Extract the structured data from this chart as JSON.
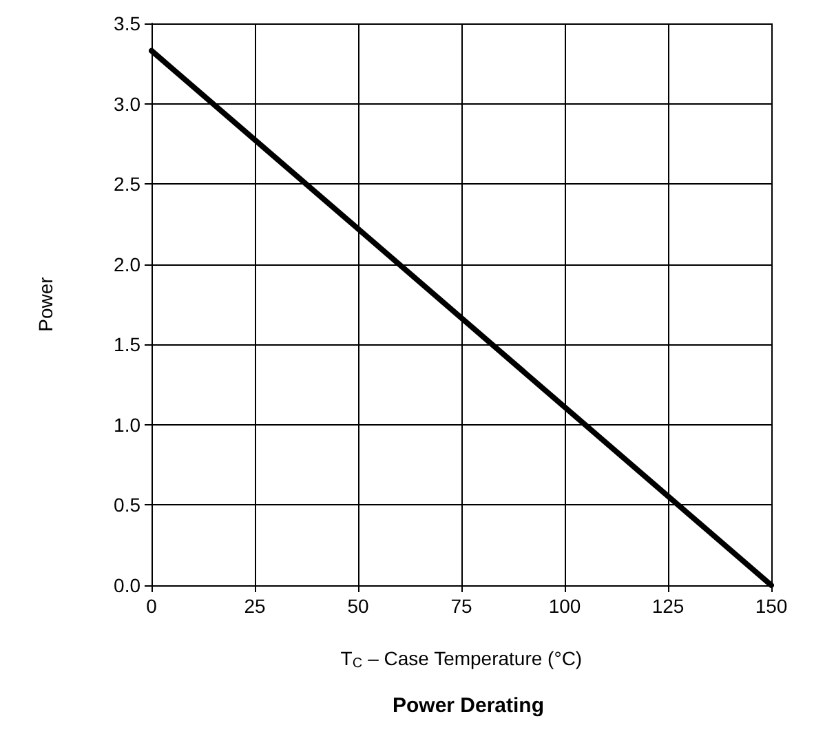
{
  "chart_data": {
    "type": "line",
    "title": "Power Derating",
    "xlabel": "T$_{C}$ – Case Temperature (°C)",
    "ylabel": "Power",
    "x": [
      0,
      150
    ],
    "series": [
      {
        "color": "#000000",
        "values": [
          3.33,
          0
        ]
      }
    ],
    "xlim": [
      0,
      150
    ],
    "xticks": [
      0,
      25,
      50,
      75,
      100,
      125,
      150
    ],
    "ylim": [
      0,
      3.5
    ],
    "yticks": [
      {
        "value": 0,
        "label": "0.0"
      },
      {
        "value": 0.5,
        "label": "0.5"
      },
      {
        "value": 1,
        "label": "1.0"
      },
      {
        "value": 1.5,
        "label": "1.5"
      },
      {
        "value": 2,
        "label": "2.0"
      },
      {
        "value": 2.5,
        "label": "2.5"
      },
      {
        "value": 3,
        "label": "3.0"
      },
      {
        "value": 3.5,
        "label": "3.5"
      }
    ],
    "grid": true,
    "marker": "none",
    "line_style": "solid"
  }
}
